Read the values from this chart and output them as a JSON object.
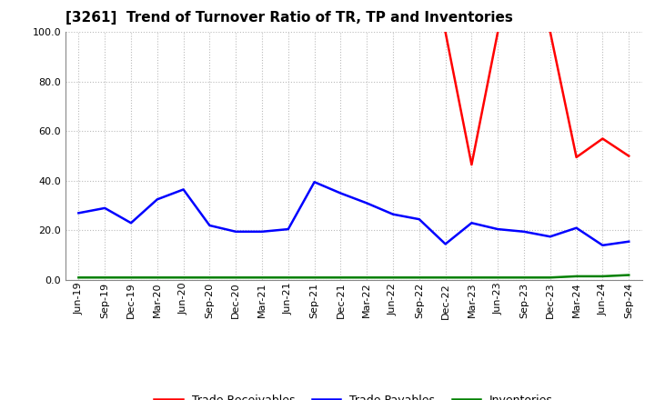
{
  "title": "[3261]  Trend of Turnover Ratio of TR, TP and Inventories",
  "xlabels": [
    "Jun-19",
    "Sep-19",
    "Dec-19",
    "Mar-20",
    "Jun-20",
    "Sep-20",
    "Dec-20",
    "Mar-21",
    "Jun-21",
    "Sep-21",
    "Dec-21",
    "Mar-22",
    "Jun-22",
    "Sep-22",
    "Dec-22",
    "Mar-23",
    "Jun-23",
    "Sep-23",
    "Dec-23",
    "Mar-24",
    "Jun-24",
    "Sep-24"
  ],
  "trade_receivables": [
    null,
    null,
    null,
    null,
    null,
    null,
    null,
    null,
    null,
    null,
    null,
    null,
    null,
    null,
    100.0,
    46.5,
    100.0,
    null,
    100.0,
    49.5,
    57.0,
    50.0
  ],
  "trade_payables": [
    27.0,
    29.0,
    23.0,
    32.5,
    36.5,
    22.0,
    19.5,
    19.5,
    20.5,
    39.5,
    35.0,
    31.0,
    26.5,
    24.5,
    14.5,
    23.0,
    20.5,
    19.5,
    17.5,
    21.0,
    14.0,
    15.5
  ],
  "inventories": [
    1.0,
    1.0,
    1.0,
    1.0,
    1.0,
    1.0,
    1.0,
    1.0,
    1.0,
    1.0,
    1.0,
    1.0,
    1.0,
    1.0,
    1.0,
    1.0,
    1.0,
    1.0,
    1.0,
    1.5,
    1.5,
    2.0
  ],
  "ylim": [
    0.0,
    100.0
  ],
  "yticks": [
    0.0,
    20.0,
    40.0,
    60.0,
    80.0,
    100.0
  ],
  "color_tr": "#ff0000",
  "color_tp": "#0000ff",
  "color_inv": "#008000",
  "legend_labels": [
    "Trade Receivables",
    "Trade Payables",
    "Inventories"
  ],
  "background_color": "#ffffff",
  "grid_color": "#bbbbbb",
  "title_fontsize": 11,
  "tick_fontsize": 8,
  "legend_fontsize": 9,
  "linewidth": 1.8
}
